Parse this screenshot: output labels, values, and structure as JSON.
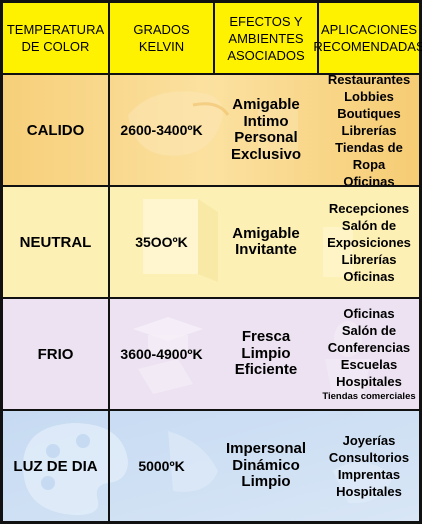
{
  "headers": {
    "temperature": [
      "TEMPERATURA",
      "DE COLOR"
    ],
    "kelvin": [
      "GRADOS",
      "KELVIN"
    ],
    "effects": [
      "EFECTOS Y",
      "AMBIENTES",
      "ASOCIADOS"
    ],
    "applications": [
      "APLICACIONES",
      "RECOMENDADAS"
    ]
  },
  "rows": [
    {
      "type": "CALIDO",
      "kelvin": "2600-3400ºK",
      "effects": [
        "Amigable",
        "Intimo",
        "Personal",
        "Exclusivo"
      ],
      "applications": [
        "Restaurantes",
        "Lobbies",
        "Boutiques",
        "Librerías",
        "Tiendas de Ropa",
        "Oficinas"
      ],
      "color": "#f9d78a"
    },
    {
      "type": "NEUTRAL",
      "kelvin": "35OOºK",
      "effects": [
        "Amigable",
        "Invitante"
      ],
      "applications": [
        "Recepciones",
        "Salón de",
        "Exposiciones",
        "Librerías",
        "Oficinas"
      ],
      "color": "#fdf0b0"
    },
    {
      "type": "FRIO",
      "kelvin": "3600-4900ºK",
      "effects": [
        "Fresca",
        "Limpio",
        "Eficiente"
      ],
      "applications": [
        "Oficinas",
        "Salón de",
        "Conferencias",
        "Escuelas",
        "Hospitales",
        "Tiendas comerciales"
      ],
      "color": "#ebe1f0"
    },
    {
      "type": "LUZ DE DIA",
      "kelvin": "5000ºK",
      "effects": [
        "Impersonal",
        "Dinámico",
        "Limpio"
      ],
      "applications": [
        "Joyerías",
        "Consultorios",
        "Imprentas",
        "Hospitales"
      ],
      "color": "#c9dcf2"
    }
  ]
}
